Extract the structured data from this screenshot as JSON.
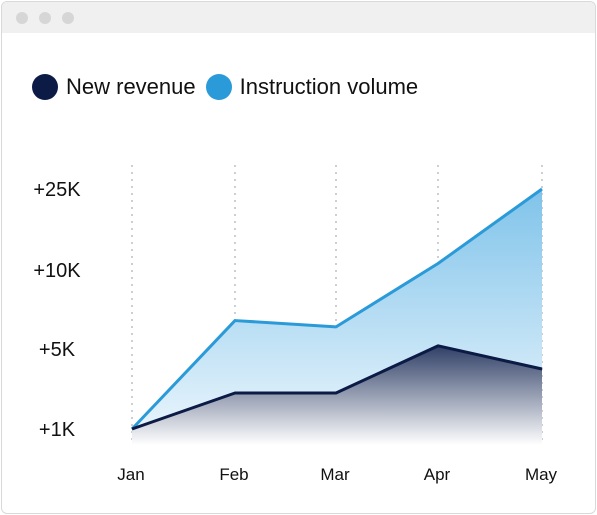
{
  "window": {
    "dot_color": "#d6d6d6"
  },
  "legend": [
    {
      "label": "New revenue",
      "color": "#0c1a46"
    },
    {
      "label": "Instruction volume",
      "color": "#2b9ad8"
    }
  ],
  "chart_data": {
    "type": "area",
    "categories": [
      "Jan",
      "Feb",
      "Mar",
      "Apr",
      "May"
    ],
    "y_ticks": [
      "+25K",
      "+10K",
      "+5K",
      "+1K"
    ],
    "series": [
      {
        "name": "Instruction volume",
        "color": "#2b9ad8",
        "values": [
          1,
          6.8,
          6.4,
          11.2,
          25
        ]
      },
      {
        "name": "New revenue",
        "color": "#0c1a46",
        "values": [
          1,
          2.8,
          2.8,
          5.2,
          4.0
        ]
      }
    ],
    "grid": "vertical-dotted",
    "legend_position": "top-left"
  }
}
